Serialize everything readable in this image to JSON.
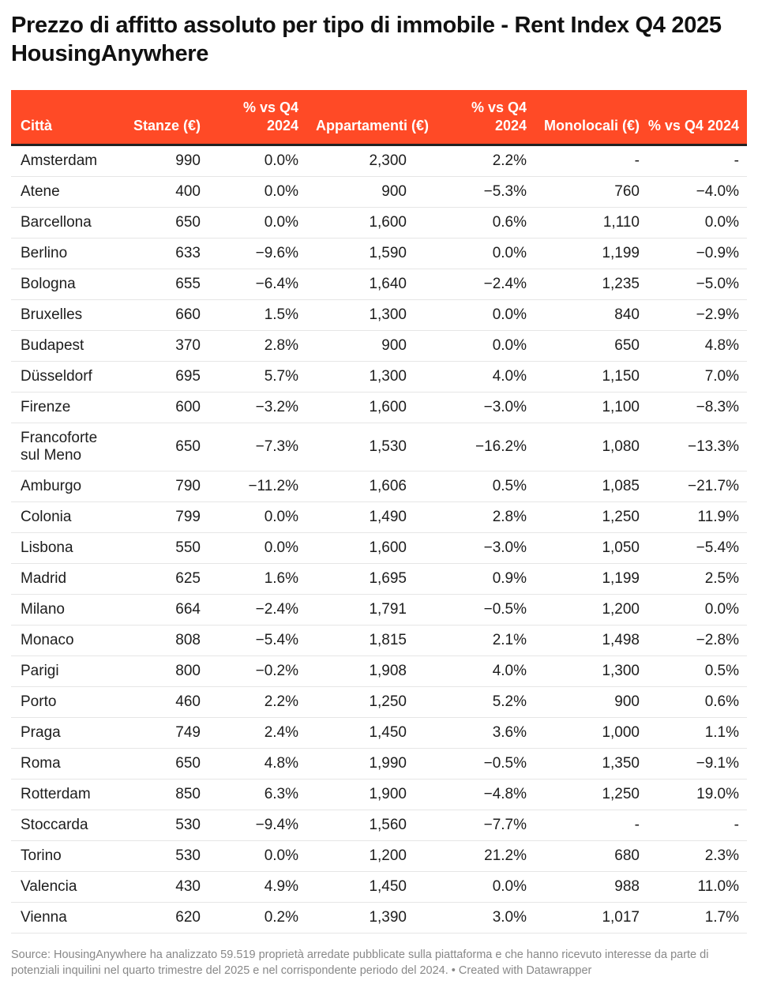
{
  "title": "Prezzo di affitto assoluto per tipo di immobile  - Rent Index Q4 2025 HousingAnywhere",
  "colors": {
    "header_bg": "#ff4a26",
    "header_text": "#ffffff"
  },
  "table": {
    "headers": [
      "Città",
      "Stanze (€)",
      "% vs Q4 2024",
      "Appartamenti (€)",
      "% vs Q4 2024",
      "Monolocali (€)",
      "% vs Q4 2024"
    ],
    "rows": [
      [
        "Amsterdam",
        "990",
        "0.0%",
        "2,300",
        "2.2%",
        "-",
        "-"
      ],
      [
        "Atene",
        "400",
        "0.0%",
        "900",
        "−5.3%",
        "760",
        "−4.0%"
      ],
      [
        "Barcellona",
        "650",
        "0.0%",
        "1,600",
        "0.6%",
        "1,110",
        "0.0%"
      ],
      [
        "Berlino",
        "633",
        "−9.6%",
        "1,590",
        "0.0%",
        "1,199",
        "−0.9%"
      ],
      [
        "Bologna",
        "655",
        "−6.4%",
        "1,640",
        "−2.4%",
        "1,235",
        "−5.0%"
      ],
      [
        "Bruxelles",
        "660",
        "1.5%",
        "1,300",
        "0.0%",
        "840",
        "−2.9%"
      ],
      [
        "Budapest",
        "370",
        "2.8%",
        "900",
        "0.0%",
        "650",
        "4.8%"
      ],
      [
        "Düsseldorf",
        "695",
        "5.7%",
        "1,300",
        "4.0%",
        "1,150",
        "7.0%"
      ],
      [
        "Firenze",
        "600",
        "−3.2%",
        "1,600",
        "−3.0%",
        "1,100",
        "−8.3%"
      ],
      [
        "Francoforte sul Meno",
        "650",
        "−7.3%",
        "1,530",
        "−16.2%",
        "1,080",
        "−13.3%"
      ],
      [
        "Amburgo",
        "790",
        "−11.2%",
        "1,606",
        "0.5%",
        "1,085",
        "−21.7%"
      ],
      [
        "Colonia",
        "799",
        "0.0%",
        "1,490",
        "2.8%",
        "1,250",
        "11.9%"
      ],
      [
        "Lisbona",
        "550",
        "0.0%",
        "1,600",
        "−3.0%",
        "1,050",
        "−5.4%"
      ],
      [
        "Madrid",
        "625",
        "1.6%",
        "1,695",
        "0.9%",
        "1,199",
        "2.5%"
      ],
      [
        "Milano",
        "664",
        "−2.4%",
        "1,791",
        "−0.5%",
        "1,200",
        "0.0%"
      ],
      [
        "Monaco",
        "808",
        "−5.4%",
        "1,815",
        "2.1%",
        "1,498",
        "−2.8%"
      ],
      [
        "Parigi",
        "800",
        "−0.2%",
        "1,908",
        "4.0%",
        "1,300",
        "0.5%"
      ],
      [
        "Porto",
        "460",
        "2.2%",
        "1,250",
        "5.2%",
        "900",
        "0.6%"
      ],
      [
        "Praga",
        "749",
        "2.4%",
        "1,450",
        "3.6%",
        "1,000",
        "1.1%"
      ],
      [
        "Roma",
        "650",
        "4.8%",
        "1,990",
        "−0.5%",
        "1,350",
        "−9.1%"
      ],
      [
        "Rotterdam",
        "850",
        "6.3%",
        "1,900",
        "−4.8%",
        "1,250",
        "19.0%"
      ],
      [
        "Stoccarda",
        "530",
        "−9.4%",
        "1,560",
        "−7.7%",
        "-",
        "-"
      ],
      [
        "Torino",
        "530",
        "0.0%",
        "1,200",
        "21.2%",
        "680",
        "2.3%"
      ],
      [
        "Valencia",
        "430",
        "4.9%",
        "1,450",
        "0.0%",
        "988",
        "11.0%"
      ],
      [
        "Vienna",
        "620",
        "0.2%",
        "1,390",
        "3.0%",
        "1,017",
        "1.7%"
      ]
    ]
  },
  "footer": "Source: HousingAnywhere ha analizzato 59.519 proprietà arredate pubblicate sulla piattaforma e che hanno ricevuto interesse da parte di potenziali inquilini nel quarto trimestre del 2025 e nel corrispondente periodo del 2024.  • Created with Datawrapper"
}
